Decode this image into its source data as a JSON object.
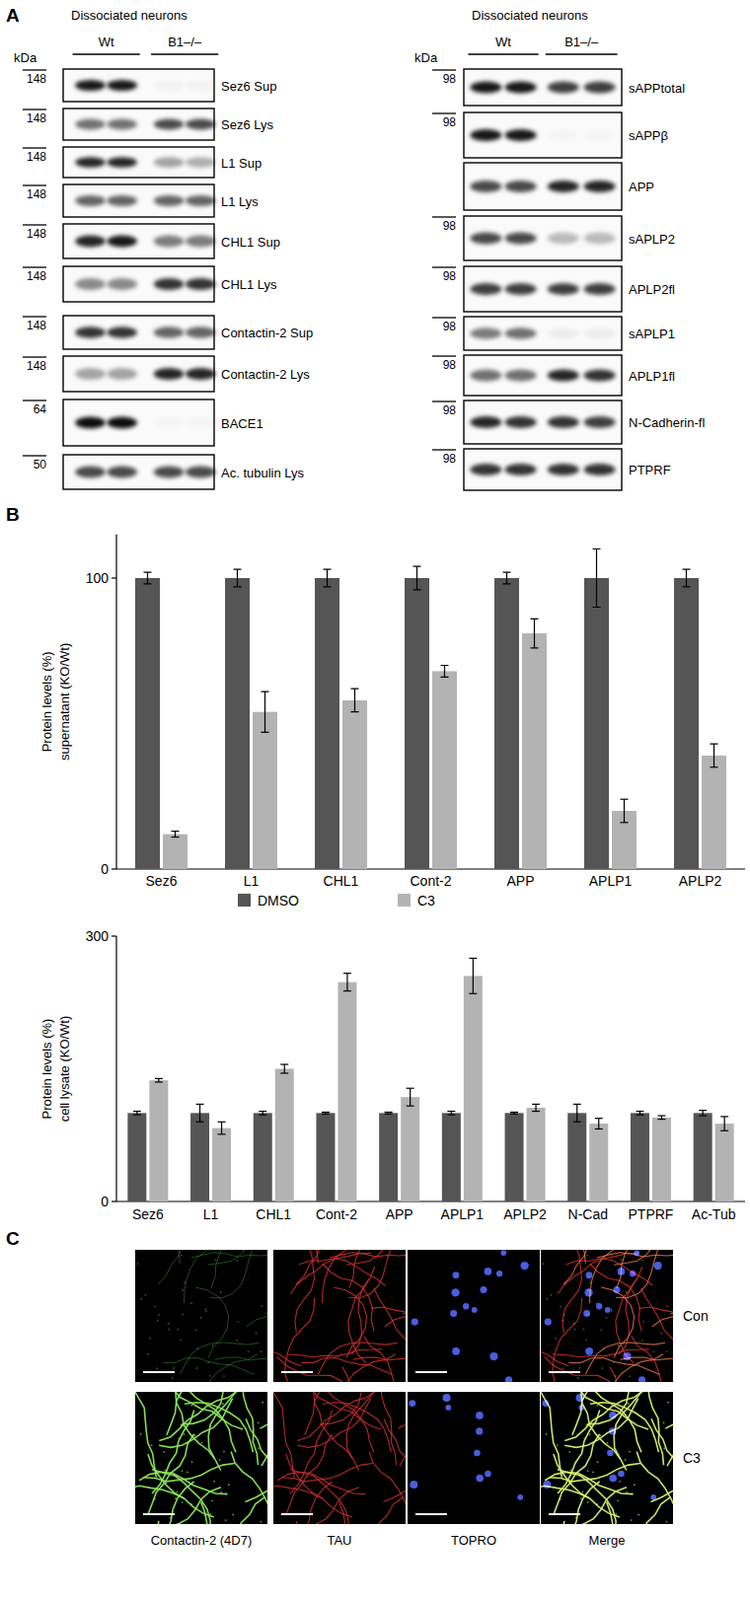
{
  "panel_labels": [
    "A",
    "B",
    "C"
  ],
  "panel_a": {
    "kda_label": "kDa",
    "columns": [
      {
        "title": "Dissociated neurons",
        "groups": [
          "Wt",
          "B1–/–"
        ],
        "blots": [
          {
            "label": "Sez6 Sup",
            "kda": 148,
            "intensity": [
              0.9,
              0.9,
              0.03,
              0.03
            ]
          },
          {
            "label": "Sez6  Lys",
            "kda": 148,
            "intensity": [
              0.55,
              0.55,
              0.7,
              0.7
            ]
          },
          {
            "label": "L1 Sup",
            "kda": 148,
            "intensity": [
              0.85,
              0.85,
              0.35,
              0.3
            ]
          },
          {
            "label": "L1 Lys",
            "kda": 148,
            "intensity": [
              0.6,
              0.6,
              0.6,
              0.6
            ]
          },
          {
            "label": "CHL1 Sup",
            "kda": 148,
            "intensity": [
              0.85,
              0.9,
              0.5,
              0.5
            ]
          },
          {
            "label": "CHL1 Lys",
            "kda": 148,
            "intensity": [
              0.45,
              0.45,
              0.8,
              0.8
            ]
          },
          {
            "label": "Contactin-2 Sup",
            "kda": 148,
            "intensity": [
              0.8,
              0.8,
              0.6,
              0.6
            ]
          },
          {
            "label": "Contactin-2 Lys",
            "kda": 148,
            "intensity": [
              0.35,
              0.35,
              0.85,
              0.85
            ]
          },
          {
            "label": "BACE1",
            "kda": 64,
            "intensity": [
              0.95,
              0.95,
              0.02,
              0.02
            ]
          },
          {
            "label": "Ac. tubulin Lys",
            "kda": 50,
            "intensity": [
              0.7,
              0.7,
              0.7,
              0.7
            ]
          }
        ]
      },
      {
        "title": "Dissociated neurons",
        "groups": [
          "Wt",
          "B1–/–"
        ],
        "blots": [
          {
            "label": "sAPPtotal",
            "kda": 98,
            "intensity": [
              0.9,
              0.9,
              0.75,
              0.75
            ]
          },
          {
            "label": "sAPPβ",
            "kda": 98,
            "intensity": [
              0.9,
              0.9,
              0.02,
              0.02
            ]
          },
          {
            "label": "APP",
            "kda": null,
            "intensity": [
              0.7,
              0.7,
              0.85,
              0.85
            ]
          },
          {
            "label": "sAPLP2",
            "kda": 98,
            "intensity": [
              0.7,
              0.7,
              0.25,
              0.25
            ]
          },
          {
            "label": "APLP2fl",
            "kda": 98,
            "intensity": [
              0.75,
              0.75,
              0.75,
              0.75
            ]
          },
          {
            "label": "sAPLP1",
            "kda": 98,
            "intensity": [
              0.5,
              0.55,
              0.05,
              0.05
            ]
          },
          {
            "label": "APLP1fl",
            "kda": 98,
            "intensity": [
              0.55,
              0.55,
              0.85,
              0.8
            ]
          },
          {
            "label": "N-Cadherin-fl",
            "kda": 98,
            "intensity": [
              0.85,
              0.8,
              0.8,
              0.75
            ]
          },
          {
            "label": "PTPRF",
            "kda": 98,
            "intensity": [
              0.8,
              0.8,
              0.8,
              0.8
            ]
          }
        ]
      }
    ]
  },
  "chart_data": [
    {
      "type": "bar",
      "ylabel": [
        "Protein levels (%)",
        "supernatant (KO/Wt)"
      ],
      "categories": [
        "Sez6",
        "L1",
        "CHL1",
        "Cont-2",
        "APP",
        "APLP1",
        "APLP2"
      ],
      "series": [
        {
          "name": "DMSO",
          "color": "#555555",
          "values": [
            100,
            100,
            100,
            100,
            100,
            100,
            100
          ],
          "errors": [
            2,
            3,
            3,
            4,
            2,
            10,
            3
          ]
        },
        {
          "name": "C3",
          "color": "#b3b3b3",
          "values": [
            12,
            54,
            58,
            68,
            81,
            20,
            39
          ],
          "errors": [
            1,
            7,
            4,
            2,
            5,
            4,
            4
          ]
        }
      ],
      "ylim": [
        0,
        115
      ],
      "yticks": [
        0,
        100
      ],
      "legend": "bottom"
    },
    {
      "type": "bar",
      "ylabel": [
        "Protein levels (%)",
        "cell lysate (KO/Wt)"
      ],
      "categories": [
        "Sez6",
        "L1",
        "CHL1",
        "Cont-2",
        "APP",
        "APLP1",
        "APLP2",
        "N-Cad",
        "PTPRF",
        "Ac-Tub"
      ],
      "series": [
        {
          "name": "DMSO",
          "color": "#555555",
          "values": [
            100,
            100,
            100,
            100,
            100,
            100,
            100,
            100,
            100,
            100
          ],
          "errors": [
            2,
            10,
            2,
            1,
            1,
            2,
            1,
            10,
            2,
            3
          ]
        },
        {
          "name": "C3",
          "color": "#b3b3b3",
          "values": [
            137,
            83,
            150,
            248,
            118,
            255,
            106,
            88,
            95,
            88
          ],
          "errors": [
            2,
            7,
            5,
            10,
            10,
            20,
            4,
            6,
            2,
            8
          ]
        }
      ],
      "ylim": [
        0,
        300
      ],
      "yticks": [
        0,
        300
      ]
    }
  ],
  "panel_c": {
    "channels": [
      "Contactin-2 (4D7)",
      "TAU",
      "TOPRO",
      "Merge"
    ],
    "conditions": [
      "Con",
      "C3"
    ]
  }
}
